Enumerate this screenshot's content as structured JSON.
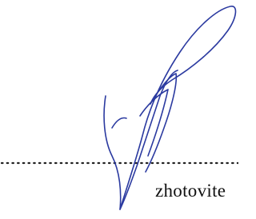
{
  "signature_label": "zhotovite"
}
